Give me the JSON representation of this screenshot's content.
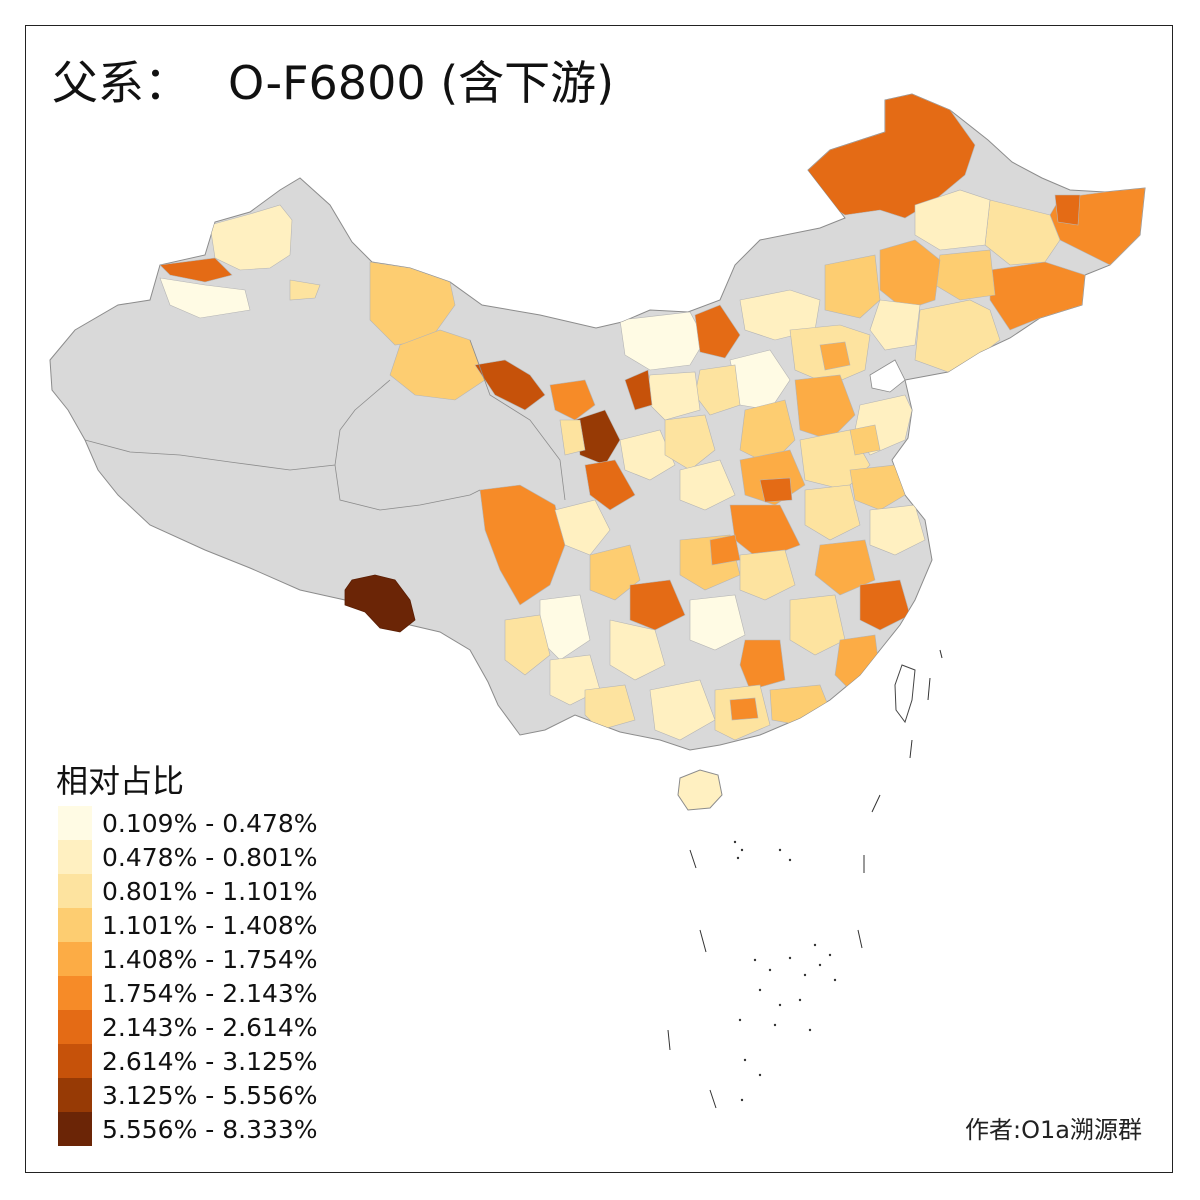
{
  "title": {
    "prefix": "父系：",
    "haplogroup": "O-F6800 (含下游)"
  },
  "legend": {
    "title": "相对占比",
    "items": [
      {
        "label": "0.109% - 0.478%",
        "color": "#fffbe4"
      },
      {
        "label": "0.478% - 0.801%",
        "color": "#fff0c1"
      },
      {
        "label": "0.801% - 1.101%",
        "color": "#fde39f"
      },
      {
        "label": "1.101% - 1.408%",
        "color": "#fdcd71"
      },
      {
        "label": "1.408% - 1.754%",
        "color": "#fcac45"
      },
      {
        "label": "1.754% - 2.143%",
        "color": "#f68b28"
      },
      {
        "label": "2.143% - 2.614%",
        "color": "#e46b15"
      },
      {
        "label": "2.614% - 3.125%",
        "color": "#c6520a"
      },
      {
        "label": "3.125% - 5.556%",
        "color": "#973a05"
      },
      {
        "label": "5.556% - 8.333%",
        "color": "#6b2506"
      }
    ]
  },
  "colors": {
    "no_data": "#d9d9d9",
    "boundary": "#8c8c8c"
  },
  "credit": "作者:O1a溯源群"
}
